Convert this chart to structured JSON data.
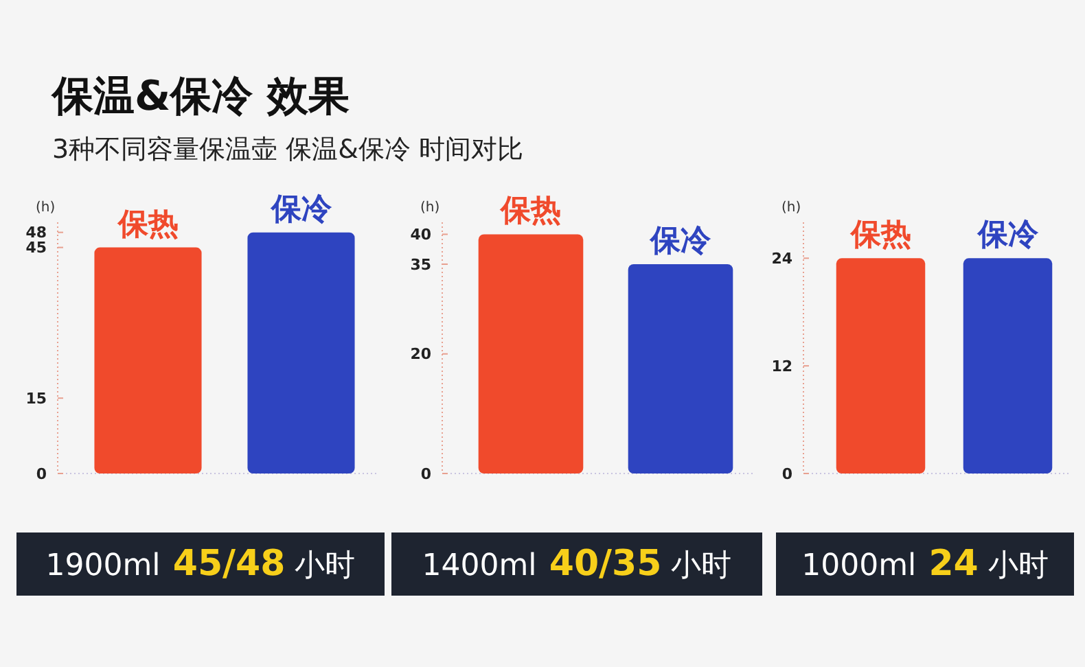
{
  "chart_data": [
    {
      "type": "bar",
      "title": "保温&保冷 效果",
      "subtitle": "3种不同容量保温壶 保温&保冷 时间对比",
      "ylabel": "(h)",
      "categories": [
        "保热",
        "保冷"
      ],
      "values": [
        45,
        48
      ],
      "colors": [
        "#f04a2c",
        "#2e44c0"
      ],
      "ylim": [
        0,
        50
      ],
      "yticks": [
        0,
        15,
        45,
        48
      ],
      "annotations": [
        "1900ml 45/48 小时"
      ]
    },
    {
      "type": "bar",
      "ylabel": "(h)",
      "categories": [
        "保热",
        "保冷"
      ],
      "values": [
        40,
        35
      ],
      "colors": [
        "#f04a2c",
        "#2e44c0"
      ],
      "ylim": [
        0,
        42
      ],
      "yticks": [
        0,
        20,
        35,
        40
      ],
      "annotations": [
        "1400ml 40/35 小时"
      ]
    },
    {
      "type": "bar",
      "ylabel": "(h)",
      "categories": [
        "保热",
        "保冷"
      ],
      "values": [
        24,
        24
      ],
      "colors": [
        "#f04a2c",
        "#2e44c0"
      ],
      "ylim": [
        0,
        28
      ],
      "yticks": [
        0,
        12,
        24
      ],
      "annotations": [
        "1000ml 24 小时"
      ]
    }
  ]
}
